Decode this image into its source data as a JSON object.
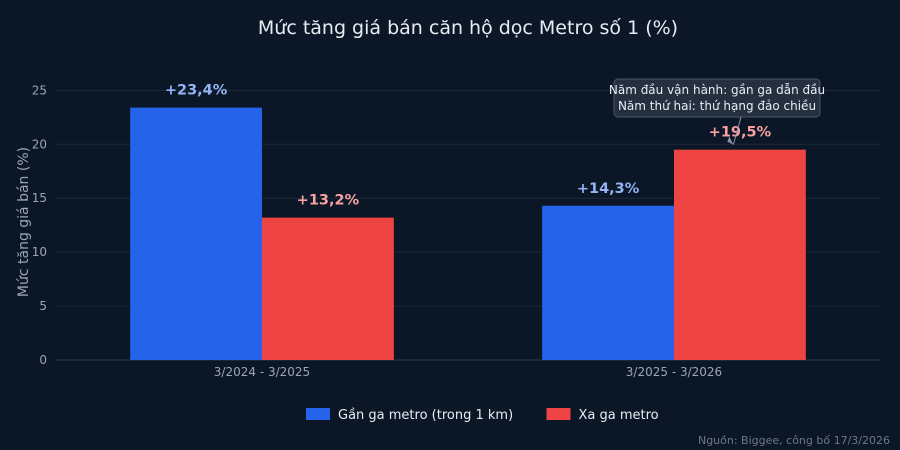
{
  "chart_data": {
    "type": "bar",
    "title": "Mức tăng giá bán căn hộ dọc Metro số 1 (%)",
    "xlabel": "",
    "ylabel": "Mức tăng giá bán (%)",
    "ylim": [
      0,
      28
    ],
    "yticks": [
      0,
      5,
      10,
      15,
      20,
      25
    ],
    "grid": true,
    "legend_position": "bottom",
    "categories": [
      "3/2024 - 3/2025",
      "3/2025 - 3/2026"
    ],
    "series": [
      {
        "name": "Gần ga metro (trong 1 km)",
        "values": [
          23.4,
          14.3
        ],
        "labels": [
          "+23,4%",
          "+14,3%"
        ],
        "color": "#2563eb",
        "label_color": "#93b4f5"
      },
      {
        "name": "Xa ga metro",
        "values": [
          13.2,
          19.5
        ],
        "labels": [
          "+13,2%",
          "+19,5%"
        ],
        "color": "#ef4444",
        "label_color": "#f7a1a1"
      }
    ],
    "annotation": {
      "lines": [
        "Năm đầu vận hành: gần ga dẫn đầu",
        "Năm thứ hai: thứ hạng đảo chiều"
      ],
      "points_to": {
        "category_index": 1,
        "series_index": 1
      }
    },
    "source": "Nguồn: Biggee, công bố 17/3/2026"
  }
}
